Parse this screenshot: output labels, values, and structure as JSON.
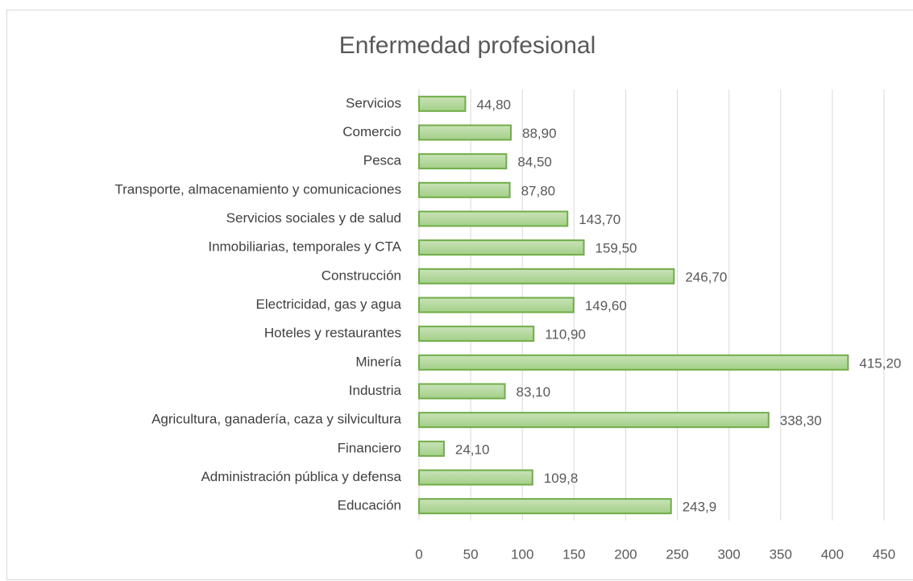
{
  "chart_data": {
    "type": "bar",
    "orientation": "horizontal",
    "title": "Enfermedad profesional",
    "categories": [
      "Servicios",
      "Comercio",
      "Pesca",
      "Transporte, almacenamiento y comunicaciones",
      "Servicios sociales y de salud",
      "Inmobiliarias, temporales y CTA",
      "Construcción",
      "Electricidad, gas y agua",
      "Hoteles y restaurantes",
      "Minería",
      "Industria",
      "Agricultura, ganadería, caza y silvicultura",
      "Financiero",
      "Administración pública y defensa",
      "Educación"
    ],
    "values": [
      44.8,
      88.9,
      84.5,
      87.8,
      143.7,
      159.5,
      246.7,
      149.6,
      110.9,
      415.2,
      83.1,
      338.3,
      24.1,
      109.8,
      243.9
    ],
    "value_labels": [
      "44,80",
      "88,90",
      "84,50",
      "87,80",
      "143,70",
      "159,50",
      "246,70",
      "149,60",
      "110,90",
      "415,20",
      "83,10",
      "338,30",
      "24,10",
      "109,8",
      "243,9"
    ],
    "color": "#70ad47",
    "xlim": [
      0,
      450
    ],
    "xticks": [
      0,
      50,
      100,
      150,
      200,
      250,
      300,
      350,
      400,
      450
    ],
    "grid": true
  }
}
